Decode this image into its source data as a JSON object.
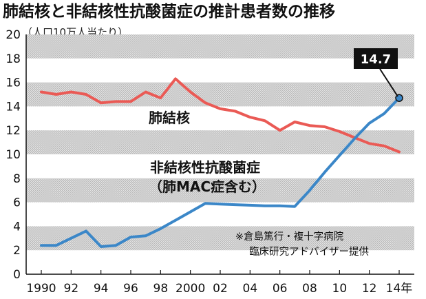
{
  "chart_data": {
    "type": "line",
    "title": "肺結核と非結核性抗酸菌症の推計患者数の推移",
    "ylabel": "（人口10万人当たり）",
    "ylim": [
      0,
      20
    ],
    "yticks": [
      "0",
      "2",
      "4",
      "6",
      "8",
      "10",
      "12",
      "14",
      "16",
      "18",
      "20"
    ],
    "x": [
      1990,
      1991,
      1992,
      1993,
      1994,
      1995,
      1996,
      1997,
      1998,
      1999,
      2000,
      2001,
      2002,
      2003,
      2004,
      2005,
      2006,
      2007,
      2008,
      2009,
      2010,
      2011,
      2012,
      2013,
      2014
    ],
    "xticks": [
      "1990",
      "92",
      "94",
      "96",
      "98",
      "2000",
      "02",
      "04",
      "06",
      "08",
      "10",
      "12",
      "14年"
    ],
    "grid": "horizontal-bands",
    "series": [
      {
        "name": "肺結核",
        "color": "#ea5a55",
        "values": [
          15.2,
          15.0,
          15.2,
          15.0,
          14.3,
          14.4,
          14.4,
          15.2,
          14.7,
          16.3,
          15.2,
          14.3,
          13.8,
          13.6,
          13.1,
          12.8,
          12.0,
          12.7,
          12.4,
          12.3,
          11.9,
          11.4,
          10.9,
          10.7,
          10.2
        ]
      },
      {
        "name": "非結核性抗酸菌症",
        "label_line2": "（肺MAC症含む）",
        "color": "#3b87c8",
        "values": [
          2.4,
          2.4,
          3.0,
          3.6,
          2.3,
          2.4,
          3.1,
          3.2,
          3.8,
          4.5,
          5.2,
          5.9,
          5.85,
          5.8,
          5.75,
          5.7,
          5.7,
          5.65,
          7.0,
          8.5,
          9.9,
          11.3,
          12.6,
          13.4,
          14.7
        ]
      }
    ],
    "annotation": {
      "text": "14.7",
      "x": 2014,
      "y": 14.7
    },
    "credit": [
      "※倉島篤行・複十字病院",
      "臨床研究アドバイザー提供"
    ]
  }
}
